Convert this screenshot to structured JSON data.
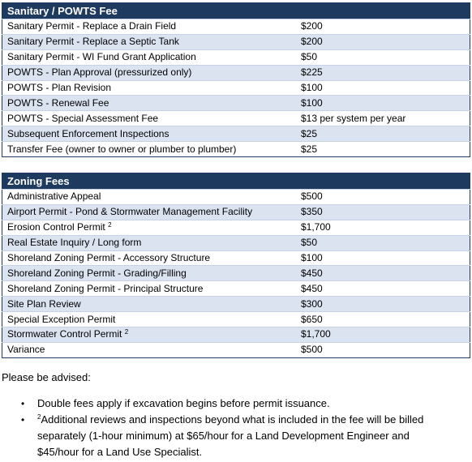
{
  "sanitary": {
    "title": "Sanitary / POWTS Fee",
    "rows": [
      {
        "label": "Sanitary Permit - Replace a Drain Field",
        "fee": "$200"
      },
      {
        "label": "Sanitary Permit - Replace a Septic Tank",
        "fee": "$200"
      },
      {
        "label": "Sanitary Permit - WI Fund Grant Application",
        "fee": "$50"
      },
      {
        "label": "POWTS - Plan Approval (pressurized only)",
        "fee": "$225"
      },
      {
        "label": "POWTS - Plan Revision",
        "fee": "$100"
      },
      {
        "label": "POWTS - Renewal Fee",
        "fee": "$100"
      },
      {
        "label": "POWTS - Special Assessment Fee",
        "fee": "$13 per system per year"
      },
      {
        "label": "Subsequent Enforcement Inspections",
        "fee": "$25"
      },
      {
        "label": "Transfer Fee (owner to owner or plumber to plumber)",
        "fee": "$25"
      }
    ]
  },
  "zoning": {
    "title": "Zoning Fees",
    "rows": [
      {
        "label": "Administrative Appeal",
        "sup": "",
        "fee": "$500"
      },
      {
        "label": "Airport Permit - Pond & Stormwater Management Facility",
        "sup": "",
        "fee": "$350"
      },
      {
        "label": "Erosion Control Permit",
        "sup": "2",
        "fee": "$1,700"
      },
      {
        "label": "Real Estate Inquiry / Long form",
        "sup": "",
        "fee": "$50"
      },
      {
        "label": "Shoreland Zoning Permit - Accessory Structure",
        "sup": "",
        "fee": "$100"
      },
      {
        "label": "Shoreland Zoning Permit - Grading/Filling",
        "sup": "",
        "fee": "$450"
      },
      {
        "label": "Shoreland Zoning Permit - Principal Structure",
        "sup": "",
        "fee": "$450"
      },
      {
        "label": "Site Plan Review",
        "sup": "",
        "fee": "$300"
      },
      {
        "label": "Special Exception Permit",
        "sup": "",
        "fee": "$650"
      },
      {
        "label": "Stormwater Control Permit",
        "sup": "2",
        "fee": "$1,700"
      },
      {
        "label": "Variance",
        "sup": "",
        "fee": "$500"
      }
    ]
  },
  "notice": {
    "heading": "Please be advised:",
    "bullets": [
      {
        "sup": "",
        "text": "Double fees apply if excavation begins before permit issuance."
      },
      {
        "sup": "2",
        "text": "Additional reviews and inspections beyond what is included in the fee will be billed separately (1-hour minimum) at $65/hour for a Land Development Engineer and $45/hour for a Land Use Specialist."
      }
    ],
    "bullet_glyph": "•"
  },
  "colors": {
    "header_bg": "#1f3a5f",
    "row_alt_bg": "#dbe3f1"
  }
}
